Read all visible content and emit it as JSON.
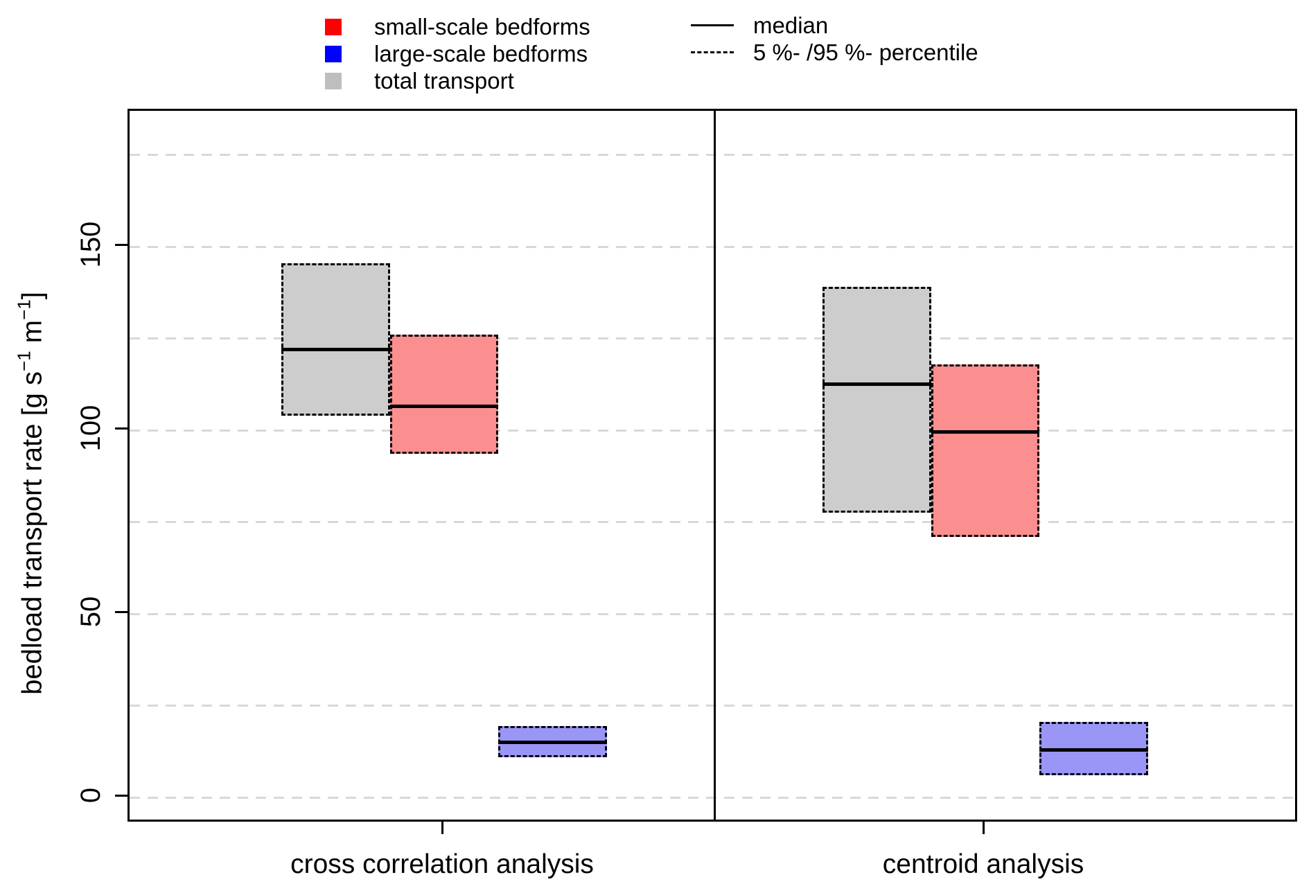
{
  "legend": {
    "series": [
      {
        "label": "small-scale bedforms",
        "color": "#ff0000"
      },
      {
        "label": "large-scale bedforms",
        "color": "#0000ff"
      },
      {
        "label": "total transport",
        "color": "#bebebe"
      }
    ],
    "lines": [
      {
        "label": "median",
        "style": "solid"
      },
      {
        "label": "5 %- /95 %- percentile",
        "style": "dashed"
      }
    ]
  },
  "axes": {
    "y_label_parts": [
      "bedload transport rate [g s",
      "−1",
      " m",
      "−1",
      "]"
    ],
    "y_label_full": "bedload transport rate [g s⁻¹ m⁻¹]",
    "y_ticks": [
      "0",
      "50",
      "100",
      "150"
    ]
  },
  "chart_data": {
    "type": "box",
    "title": "",
    "xlabel": "",
    "ylabel": "bedload transport rate [g s⁻¹ m⁻¹]",
    "ylim": [
      -7,
      187
    ],
    "y_tick_values": [
      0,
      50,
      100,
      150
    ],
    "y_gridline_values": [
      0,
      25,
      50,
      75,
      100,
      125,
      150,
      175
    ],
    "grid": "dashed-horizontal",
    "legend_position": "top",
    "box_whiskers": "none",
    "box_bounds_meaning": "5th and 95th percentile",
    "categories": [
      "cross correlation analysis",
      "centroid analysis"
    ],
    "panels": [
      {
        "category": "cross correlation analysis",
        "boxes": [
          {
            "series": "total transport",
            "color": "#cdcdcd",
            "p5": 104,
            "median": 122,
            "p95": 145.5
          },
          {
            "series": "small-scale bedforms",
            "color": "#fb8e8e",
            "p5": 93.5,
            "median": 106.5,
            "p95": 126
          },
          {
            "series": "large-scale bedforms",
            "color": "#9a96f6",
            "p5": 11,
            "median": 15,
            "p95": 19.5
          }
        ]
      },
      {
        "category": "centroid analysis",
        "boxes": [
          {
            "series": "total transport",
            "color": "#cdcdcd",
            "p5": 77.5,
            "median": 112.5,
            "p95": 139
          },
          {
            "series": "small-scale bedforms",
            "color": "#fb8e8e",
            "p5": 71,
            "median": 99.5,
            "p95": 118
          },
          {
            "series": "large-scale bedforms",
            "color": "#9a96f6",
            "p5": 6,
            "median": 13,
            "p95": 20.5
          }
        ]
      }
    ]
  }
}
